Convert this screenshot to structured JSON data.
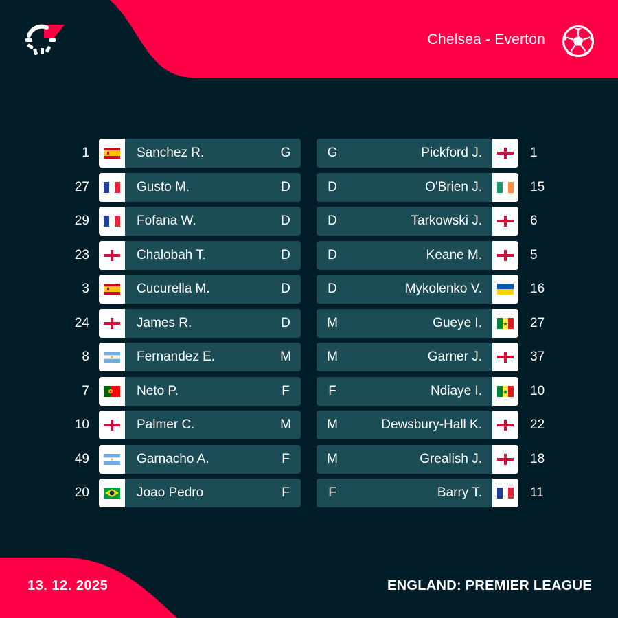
{
  "header": {
    "match": "Chelsea - Everton"
  },
  "footer": {
    "date": "13. 12. 2025",
    "league": "ENGLAND: PREMIER LEAGUE"
  },
  "lineups": [
    {
      "home": {
        "number": "1",
        "name": "Sanchez R.",
        "position": "G",
        "flag": "spain"
      },
      "away": {
        "number": "1",
        "name": "Pickford J.",
        "position": "G",
        "flag": "england"
      }
    },
    {
      "home": {
        "number": "27",
        "name": "Gusto M.",
        "position": "D",
        "flag": "france"
      },
      "away": {
        "number": "15",
        "name": "O'Brien J.",
        "position": "D",
        "flag": "ireland"
      }
    },
    {
      "home": {
        "number": "29",
        "name": "Fofana W.",
        "position": "D",
        "flag": "france"
      },
      "away": {
        "number": "6",
        "name": "Tarkowski J.",
        "position": "D",
        "flag": "england"
      }
    },
    {
      "home": {
        "number": "23",
        "name": "Chalobah T.",
        "position": "D",
        "flag": "england"
      },
      "away": {
        "number": "5",
        "name": "Keane M.",
        "position": "D",
        "flag": "england"
      }
    },
    {
      "home": {
        "number": "3",
        "name": "Cucurella M.",
        "position": "D",
        "flag": "spain"
      },
      "away": {
        "number": "16",
        "name": "Mykolenko V.",
        "position": "D",
        "flag": "ukraine"
      }
    },
    {
      "home": {
        "number": "24",
        "name": "James R.",
        "position": "D",
        "flag": "england"
      },
      "away": {
        "number": "27",
        "name": "Gueye I.",
        "position": "M",
        "flag": "senegal"
      }
    },
    {
      "home": {
        "number": "8",
        "name": "Fernandez E.",
        "position": "M",
        "flag": "argentina"
      },
      "away": {
        "number": "37",
        "name": "Garner J.",
        "position": "M",
        "flag": "england"
      }
    },
    {
      "home": {
        "number": "7",
        "name": "Neto P.",
        "position": "F",
        "flag": "portugal"
      },
      "away": {
        "number": "10",
        "name": "Ndiaye I.",
        "position": "F",
        "flag": "senegal"
      }
    },
    {
      "home": {
        "number": "10",
        "name": "Palmer C.",
        "position": "M",
        "flag": "england"
      },
      "away": {
        "number": "22",
        "name": "Dewsbury-Hall K.",
        "position": "M",
        "flag": "england"
      }
    },
    {
      "home": {
        "number": "49",
        "name": "Garnacho A.",
        "position": "F",
        "flag": "argentina"
      },
      "away": {
        "number": "18",
        "name": "Grealish J.",
        "position": "M",
        "flag": "england"
      }
    },
    {
      "home": {
        "number": "20",
        "name": "Joao Pedro",
        "position": "F",
        "flag": "brazil"
      },
      "away": {
        "number": "11",
        "name": "Barry T.",
        "position": "F",
        "flag": "france"
      }
    }
  ]
}
